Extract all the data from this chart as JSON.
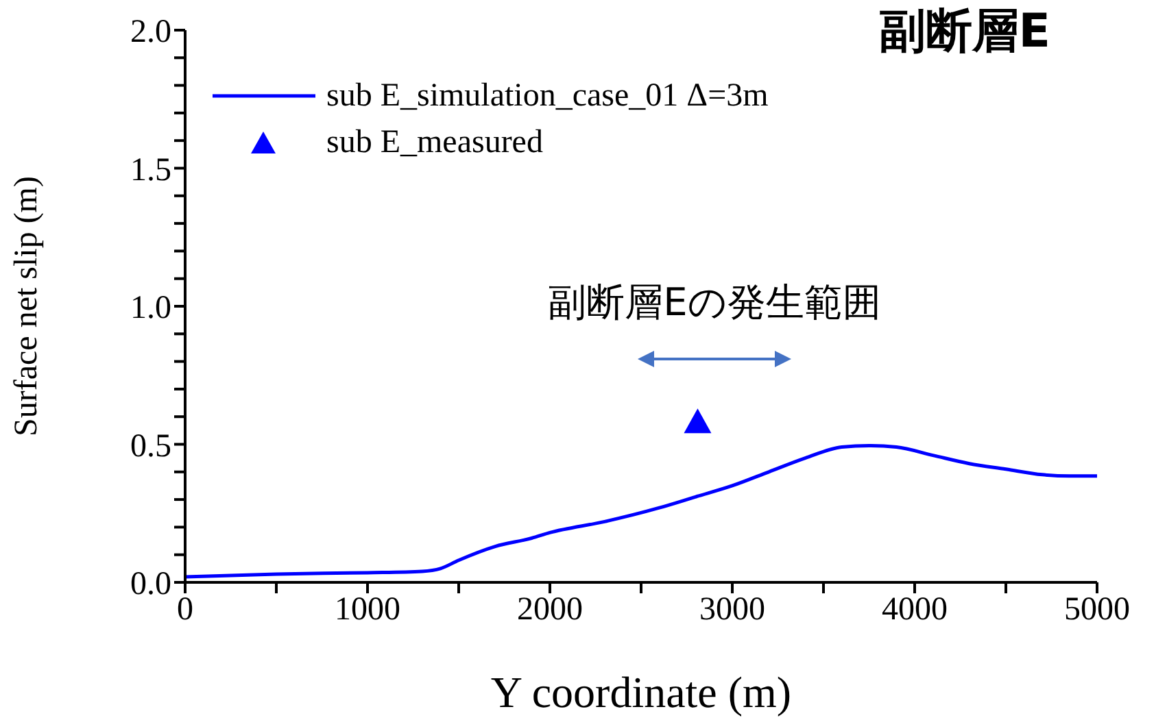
{
  "chart_data": {
    "type": "line",
    "title": "副断層E",
    "xlabel": "Y coordinate (m)",
    "ylabel": "Surface net slip (m)",
    "annotations": [
      "副断層Eの発生範囲"
    ],
    "series": [
      {
        "name": "sub E_simulation_case_01 Δ=3m",
        "color": "#0000ff",
        "x": [
          0,
          500,
          1000,
          1300,
          1400,
          1500,
          1700,
          1900,
          2000,
          2300,
          2600,
          2800,
          3000,
          3200,
          3400,
          3600,
          3750,
          3900,
          4100,
          4300,
          4500,
          4700,
          4850,
          5000
        ],
        "values": [
          0.02,
          0.03,
          0.035,
          0.04,
          0.05,
          0.08,
          0.13,
          0.16,
          0.18,
          0.22,
          0.27,
          0.31,
          0.35,
          0.4,
          0.45,
          0.49,
          0.495,
          0.49,
          0.46,
          0.43,
          0.41,
          0.39,
          0.385,
          0.385
        ]
      },
      {
        "name": "sub E_measured",
        "color": "#0000ff",
        "type": "scatter",
        "marker": "triangle",
        "x": [
          2810
        ],
        "values": [
          0.58
        ]
      }
    ],
    "xlim": [
      0,
      5000
    ],
    "ylim": [
      0,
      2
    ],
    "xticks": [
      0,
      {
        "value": 500,
        "label": null
      },
      1000,
      {
        "value": 1500,
        "label": null
      },
      2000,
      {
        "value": 2500,
        "label": null
      },
      3000,
      {
        "value": 3500,
        "label": null
      },
      4000,
      {
        "value": 4500,
        "label": null
      },
      5000
    ],
    "yticks": [
      {
        "value": 0,
        "label": "0.0"
      },
      {
        "value": 0.1,
        "label": null
      },
      {
        "value": 0.2,
        "label": null
      },
      {
        "value": 0.3,
        "label": null
      },
      {
        "value": 0.4,
        "label": null
      },
      {
        "value": 0.5,
        "label": "0.5"
      },
      {
        "value": 0.6,
        "label": null
      },
      {
        "value": 0.7,
        "label": null
      },
      {
        "value": 0.8,
        "label": null
      },
      {
        "value": 0.9,
        "label": null
      },
      {
        "value": 1,
        "label": "1.0"
      },
      {
        "value": 1.1,
        "label": null
      },
      {
        "value": 1.2,
        "label": null
      },
      {
        "value": 1.3,
        "label": null
      },
      {
        "value": 1.4,
        "label": null
      },
      {
        "value": 1.5,
        "label": "1.5"
      },
      {
        "value": 1.6,
        "label": null
      },
      {
        "value": 1.7,
        "label": null
      },
      {
        "value": 1.8,
        "label": null
      },
      {
        "value": 1.9,
        "label": null
      },
      {
        "value": 2,
        "label": "2.0"
      }
    ],
    "grid": false,
    "legend": "top left"
  }
}
